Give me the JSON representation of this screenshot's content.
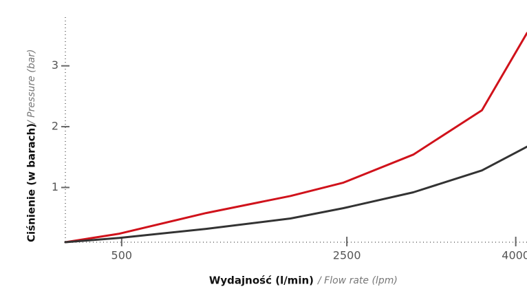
{
  "chart_data": {
    "type": "line",
    "y_label_main": "Ciśnienie (w barach)",
    "y_label_sub": "/ Pressure (bar)",
    "x_label_main": "Wydajność (l/min)",
    "x_label_sub": "/ Flow rate (lpm)",
    "x": [
      0,
      480,
      1250,
      2000,
      2470,
      3090,
      3700,
      4100
    ],
    "series": [
      {
        "color": "#d0121b",
        "values": [
          0.1,
          0.24,
          0.58,
          0.86,
          1.08,
          1.54,
          2.27,
          3.54
        ]
      },
      {
        "color": "#333333",
        "values": [
          0.1,
          0.17,
          0.32,
          0.49,
          0.66,
          0.92,
          1.28,
          1.67
        ]
      }
    ],
    "xlim": [
      0,
      4100
    ],
    "ylim": [
      0.1,
      3.8
    ],
    "xticks": [
      500,
      2500,
      4000
    ],
    "yticks": [
      1,
      2,
      3
    ]
  }
}
